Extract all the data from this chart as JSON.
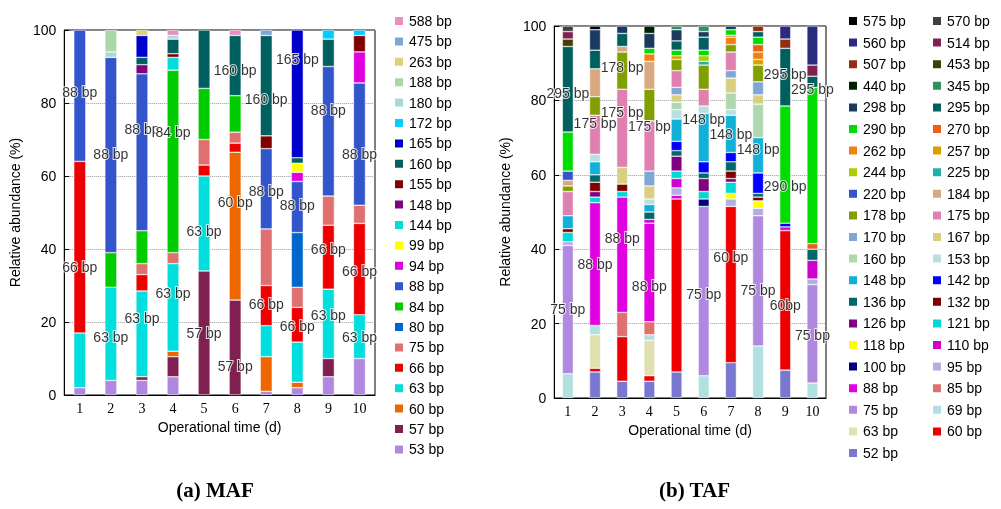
{
  "chart_data": [
    {
      "type": "bar",
      "title": "(a) MAF",
      "xlabel": "Operational time (d)",
      "ylabel": "Relative abundance (%)",
      "categories": [
        "1",
        "2",
        "3",
        "4",
        "5",
        "6",
        "7",
        "8",
        "9",
        "10"
      ],
      "stacked": true,
      "ylim": [
        0,
        100
      ],
      "yticks": [
        0,
        20,
        40,
        60,
        80,
        100
      ],
      "grid": "y",
      "legend": "right",
      "series": [
        {
          "name": "53 bp",
          "color": "#b088e0",
          "values": [
            2,
            4,
            4,
            5,
            null,
            null,
            1,
            2,
            5,
            10
          ]
        },
        {
          "name": "57 bp",
          "color": "#802050",
          "values": [
            null,
            null,
            1,
            5.5,
            34,
            26,
            null,
            null,
            5,
            null
          ]
        },
        {
          "name": "60 bp",
          "color": "#ee6600",
          "values": [
            null,
            null,
            null,
            1.5,
            null,
            40.5,
            9.5,
            1.5,
            null,
            null
          ]
        },
        {
          "name": "63 bp",
          "color": "#00dede",
          "values": [
            15,
            25.5,
            23.5,
            24,
            26,
            null,
            8.5,
            11,
            19,
            12
          ]
        },
        {
          "name": "66 bp",
          "color": "#ee0000",
          "values": [
            47,
            null,
            4.5,
            null,
            3,
            2.5,
            11,
            9.5,
            17.5,
            25
          ]
        },
        {
          "name": "75 bp",
          "color": "#e07070",
          "values": [
            null,
            null,
            3,
            3,
            7,
            3,
            15.5,
            5.5,
            8,
            5
          ]
        },
        {
          "name": "80 bp",
          "color": "#0066cc",
          "values": [
            null,
            null,
            null,
            null,
            null,
            null,
            null,
            15,
            null,
            null
          ]
        },
        {
          "name": "84 bp",
          "color": "#00cc00",
          "values": [
            null,
            9.5,
            9,
            50,
            14,
            10,
            null,
            null,
            null,
            null
          ]
        },
        {
          "name": "88 bp",
          "color": "#3355cc",
          "values": [
            36,
            53.5,
            43,
            null,
            null,
            null,
            22,
            14,
            35.5,
            33.5
          ]
        },
        {
          "name": "94 bp",
          "color": "#e000e0",
          "values": [
            null,
            null,
            null,
            null,
            null,
            null,
            null,
            2.5,
            null,
            8.5
          ]
        },
        {
          "name": "99 bp",
          "color": "#ffff00",
          "values": [
            null,
            null,
            null,
            null,
            null,
            null,
            null,
            2.5,
            null,
            null
          ]
        },
        {
          "name": "144 bp",
          "color": "#00dddd",
          "values": [
            null,
            null,
            null,
            3.5,
            null,
            null,
            null,
            null,
            null,
            null
          ]
        },
        {
          "name": "148 bp",
          "color": "#800080",
          "values": [
            null,
            null,
            2.5,
            null,
            null,
            null,
            null,
            null,
            null,
            null
          ]
        },
        {
          "name": "155 bp",
          "color": "#800000",
          "values": [
            null,
            null,
            null,
            1,
            null,
            null,
            3.5,
            null,
            null,
            4.5
          ]
        },
        {
          "name": "160 bp",
          "color": "#006060",
          "values": [
            null,
            null,
            2,
            4,
            16,
            16.5,
            27.5,
            1.5,
            7.5,
            null
          ]
        },
        {
          "name": "165 bp",
          "color": "#0000cc",
          "values": [
            null,
            null,
            6,
            null,
            null,
            null,
            null,
            35,
            null,
            null
          ]
        },
        {
          "name": "172 bp",
          "color": "#00ccff",
          "values": [
            null,
            null,
            null,
            null,
            null,
            null,
            null,
            null,
            2.5,
            1.5
          ]
        },
        {
          "name": "180 bp",
          "color": "#a8d8d8",
          "values": [
            null,
            1.5,
            null,
            1,
            null,
            null,
            null,
            null,
            null,
            null
          ]
        },
        {
          "name": "188 bp",
          "color": "#a8d8a8",
          "values": [
            null,
            6,
            null,
            null,
            null,
            null,
            null,
            null,
            null,
            null
          ]
        },
        {
          "name": "263 bp",
          "color": "#d8d27a",
          "values": [
            null,
            null,
            1.5,
            null,
            null,
            null,
            null,
            null,
            null,
            null
          ]
        },
        {
          "name": "475 bp",
          "color": "#7fa6d6",
          "values": [
            null,
            null,
            null,
            null,
            null,
            null,
            1.5,
            null,
            null,
            null
          ]
        },
        {
          "name": "588 bp",
          "color": "#e88fc0",
          "values": [
            null,
            null,
            null,
            1.5,
            null,
            1.5,
            null,
            null,
            null,
            null
          ]
        }
      ],
      "annotations": [
        "88 bp",
        "66 bp",
        "88 bp",
        "63 bp",
        "88 bp",
        "63 bp",
        "84 bp",
        "63 bp",
        "63 bp",
        "57 bp",
        "160 bp",
        "60 bp",
        "57 bp",
        "160 bp",
        "88 bp",
        "66 bp",
        "165 bp",
        "88 bp",
        "66 bp",
        "88 bp",
        "66 bp",
        "63 bp",
        "88 bp",
        "66 bp",
        "63 bp"
      ]
    },
    {
      "type": "bar",
      "title": "(b) TAF",
      "xlabel": "Operational time (d)",
      "ylabel": "Relative abundance (%)",
      "categories": [
        "1",
        "2",
        "3",
        "4",
        "5",
        "6",
        "7",
        "8",
        "9",
        "10"
      ],
      "stacked": true,
      "ylim": [
        0,
        100
      ],
      "yticks": [
        0,
        20,
        40,
        60,
        80,
        100
      ],
      "grid": "y",
      "legend": "right",
      "series": [
        {
          "name": "52 bp",
          "color": "#7878d0",
          "values": [
            null,
            7,
            4.5,
            4.5,
            7,
            null,
            9.5,
            null,
            7.5,
            null
          ]
        },
        {
          "name": "60 bp",
          "color": "#ee0000",
          "values": [
            null,
            1,
            12,
            1.5,
            46.5,
            null,
            42,
            null,
            37.5,
            null
          ]
        },
        {
          "name": "63 bp",
          "color": "#e0e0b0",
          "values": [
            null,
            9,
            null,
            9.5,
            null,
            null,
            null,
            null,
            null,
            null
          ]
        },
        {
          "name": "69 bp",
          "color": "#b0e0e0",
          "values": [
            6.5,
            2.5,
            null,
            1.5,
            null,
            6,
            null,
            14,
            null,
            4
          ]
        },
        {
          "name": "75 bp",
          "color": "#b088e0",
          "values": [
            34.5,
            null,
            null,
            null,
            null,
            45.5,
            null,
            35,
            null,
            26.5
          ]
        },
        {
          "name": "85 bp",
          "color": "#e07070",
          "values": [
            null,
            null,
            6.5,
            3.5,
            null,
            null,
            null,
            null,
            null,
            null
          ]
        },
        {
          "name": "88 bp",
          "color": "#e000e0",
          "values": [
            null,
            33,
            31,
            26.5,
            1,
            null,
            null,
            null,
            1,
            null
          ]
        },
        {
          "name": "95 bp",
          "color": "#b0b0e0",
          "values": [
            1,
            null,
            null,
            null,
            2,
            null,
            2,
            2,
            null,
            1.5
          ]
        },
        {
          "name": "100 bp",
          "color": "#000080",
          "values": [
            null,
            null,
            null,
            null,
            null,
            2,
            null,
            null,
            null,
            null
          ]
        },
        {
          "name": "110 bp",
          "color": "#d000d0",
          "values": [
            null,
            null,
            null,
            1,
            2.5,
            null,
            null,
            null,
            null,
            5
          ]
        },
        {
          "name": "118 bp",
          "color": "#ffff00",
          "values": [
            null,
            null,
            null,
            null,
            null,
            null,
            1.5,
            2,
            null,
            null
          ]
        },
        {
          "name": "121 bp",
          "color": "#00d8d8",
          "values": [
            2.5,
            1.5,
            1.5,
            null,
            2,
            2,
            3,
            null,
            null,
            null
          ]
        },
        {
          "name": "126 bp",
          "color": "#800080",
          "values": [
            null,
            1.5,
            null,
            null,
            4,
            3.5,
            1,
            null,
            null,
            null
          ]
        },
        {
          "name": "132 bp",
          "color": "#800000",
          "values": [
            1,
            2.5,
            2,
            null,
            null,
            null,
            2,
            1,
            null,
            null
          ]
        },
        {
          "name": "136 bp",
          "color": "#006868",
          "values": [
            null,
            2,
            null,
            2,
            1.5,
            1.5,
            2.5,
            1,
            null,
            3
          ]
        },
        {
          "name": "142 bp",
          "color": "#0000ff",
          "values": [
            null,
            null,
            null,
            null,
            2.5,
            3,
            2.5,
            5.5,
            1,
            null
          ]
        },
        {
          "name": "148 bp",
          "color": "#10b0d8",
          "values": [
            3.5,
            3.5,
            null,
            2,
            6,
            13,
            10,
            9.5,
            null,
            null
          ]
        },
        {
          "name": "153 bp",
          "color": "#b8e0e0",
          "values": [
            null,
            2,
            null,
            1.5,
            2.5,
            2,
            1.5,
            null,
            null,
            null
          ]
        },
        {
          "name": "160 bp",
          "color": "#b0d8b0",
          "values": [
            null,
            null,
            null,
            null,
            2,
            null,
            4.5,
            9,
            null,
            null
          ]
        },
        {
          "name": "167 bp",
          "color": "#d8d080",
          "values": [
            null,
            null,
            4.5,
            3.5,
            2,
            null,
            4,
            2.5,
            null,
            null
          ]
        },
        {
          "name": "170 bp",
          "color": "#7fa6d6",
          "values": [
            null,
            null,
            null,
            4,
            2,
            null,
            2,
            3.5,
            null,
            null
          ]
        },
        {
          "name": "175 bp",
          "color": "#e080b0",
          "values": [
            6.5,
            10.5,
            21,
            13.5,
            4.5,
            4.5,
            5,
            null,
            null,
            null
          ]
        },
        {
          "name": "178 bp",
          "color": "#80a000",
          "values": [
            1.5,
            5,
            10,
            8.5,
            3,
            6.5,
            2,
            4.5,
            null,
            null
          ]
        },
        {
          "name": "184 bp",
          "color": "#d8a880",
          "values": [
            1.5,
            7.5,
            1.5,
            7.5,
            null,
            null,
            null,
            null,
            null,
            null
          ]
        },
        {
          "name": "220 bp",
          "color": "#3355cc",
          "values": [
            2.5,
            null,
            null,
            null,
            null,
            null,
            null,
            null,
            null,
            null
          ]
        },
        {
          "name": "225 bp",
          "color": "#20b0b0",
          "values": [
            null,
            null,
            null,
            null,
            null,
            1,
            null,
            null,
            null,
            null
          ]
        },
        {
          "name": "244 bp",
          "color": "#a8d000",
          "values": [
            null,
            null,
            null,
            null,
            null,
            1.5,
            null,
            null,
            null,
            null
          ]
        },
        {
          "name": "257 bp",
          "color": "#d8a000",
          "values": [
            null,
            null,
            null,
            null,
            1,
            null,
            null,
            1.5,
            null,
            null
          ]
        },
        {
          "name": "262 bp",
          "color": "#f08010",
          "values": [
            null,
            null,
            null,
            2,
            null,
            null,
            2,
            2,
            null,
            null
          ]
        },
        {
          "name": "270 bp",
          "color": "#ee6010",
          "values": [
            null,
            null,
            null,
            null,
            null,
            null,
            0.5,
            2,
            null,
            1.5
          ]
        },
        {
          "name": "290 bp",
          "color": "#00dd00",
          "values": [
            10.5,
            null,
            null,
            1.5,
            1.5,
            1.5,
            1.5,
            2,
            31.5,
            42
          ]
        },
        {
          "name": "295 bp",
          "color": "#006060",
          "values": [
            23,
            5,
            3.5,
            null,
            2.5,
            3.5,
            null,
            1.5,
            15.5,
            3
          ]
        },
        {
          "name": "298 bp",
          "color": "#1a3a60",
          "values": [
            null,
            5.5,
            2,
            4,
            3,
            1.5,
            1,
            null,
            null,
            null
          ]
        },
        {
          "name": "345 bp",
          "color": "#309060",
          "values": [
            null,
            null,
            null,
            null,
            1,
            1.5,
            null,
            null,
            null,
            null
          ]
        },
        {
          "name": "440 bp",
          "color": "#002000",
          "values": [
            null,
            null,
            null,
            2,
            null,
            null,
            null,
            null,
            null,
            null
          ]
        },
        {
          "name": "453 bp",
          "color": "#404000",
          "values": [
            2,
            null,
            null,
            null,
            null,
            null,
            null,
            null,
            null,
            null
          ]
        },
        {
          "name": "507 bp",
          "color": "#903010",
          "values": [
            null,
            null,
            null,
            null,
            null,
            null,
            null,
            1.5,
            2.5,
            null
          ]
        },
        {
          "name": "514 bp",
          "color": "#802050",
          "values": [
            2,
            null,
            null,
            null,
            null,
            null,
            null,
            null,
            null,
            3
          ]
        },
        {
          "name": "560 bp",
          "color": "#2a2a80",
          "values": [
            null,
            null,
            null,
            null,
            null,
            null,
            null,
            null,
            3.5,
            10.5
          ]
        },
        {
          "name": "570 bp",
          "color": "#404040",
          "values": [
            1.5,
            null,
            null,
            null,
            null,
            null,
            null,
            null,
            null,
            null
          ]
        },
        {
          "name": "575 bp",
          "color": "#000000",
          "values": [
            null,
            1,
            null,
            null,
            null,
            null,
            null,
            null,
            null,
            null
          ]
        }
      ],
      "annotations": [
        "295 bp",
        "75 bp",
        "175 bp",
        "88 bp",
        "178 bp",
        "175 bp",
        "88 bp",
        "175 bp",
        "88 bp",
        "148 bp",
        "75 bp",
        "148 bp",
        "60 bp",
        "148 bp",
        "75 bp",
        "295 bp",
        "290 bp",
        "60bp",
        "295 bp",
        "75 bp"
      ]
    }
  ]
}
